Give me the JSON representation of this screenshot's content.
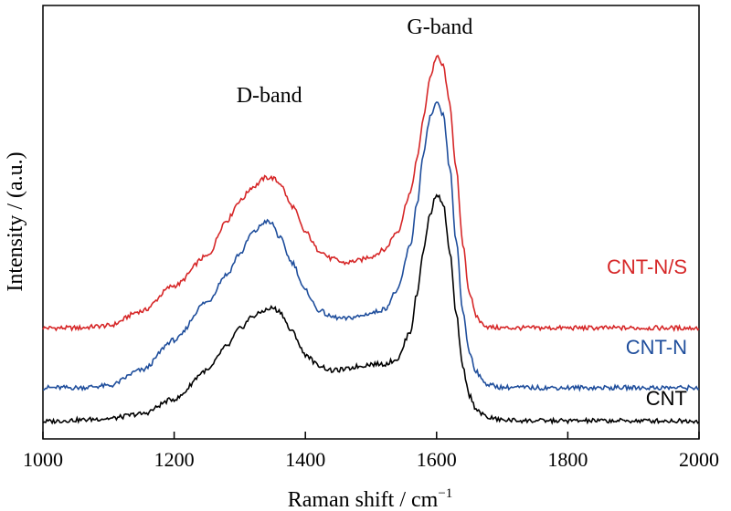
{
  "chart_data": {
    "type": "line",
    "title": "",
    "xlabel": "Raman shift / cm",
    "xlabel_superscript": "−1",
    "ylabel": "Intensity / (a.u.)",
    "xlim": [
      1000,
      2000
    ],
    "ylim": [
      0,
      1
    ],
    "x_ticks": [
      "1000",
      "1200",
      "1400",
      "1600",
      "1800",
      "2000"
    ],
    "y_ticks_shown": false,
    "grid": false,
    "legend": "inline labels at right",
    "annotations": [
      {
        "text": "D-band",
        "x": 1345
      },
      {
        "text": "G-band",
        "x": 1605
      }
    ],
    "series": [
      {
        "name": "CNT-N/S",
        "color": "#d62728",
        "x": [
          1000,
          1050,
          1100,
          1150,
          1200,
          1250,
          1280,
          1300,
          1320,
          1340,
          1350,
          1360,
          1380,
          1400,
          1420,
          1440,
          1460,
          1480,
          1500,
          1520,
          1540,
          1560,
          1570,
          1580,
          1590,
          1600,
          1610,
          1620,
          1630,
          1640,
          1650,
          1660,
          1670,
          1680,
          1700,
          1750,
          1800,
          1850,
          1900,
          1950,
          2000
        ],
        "values": [
          0.246,
          0.246,
          0.252,
          0.29,
          0.357,
          0.434,
          0.528,
          0.58,
          0.617,
          0.641,
          0.64,
          0.628,
          0.566,
          0.498,
          0.451,
          0.428,
          0.417,
          0.423,
          0.434,
          0.451,
          0.499,
          0.6,
          0.688,
          0.797,
          0.905,
          0.959,
          0.935,
          0.835,
          0.66,
          0.467,
          0.339,
          0.278,
          0.257,
          0.248,
          0.246,
          0.246,
          0.246,
          0.246,
          0.246,
          0.246,
          0.246
        ]
      },
      {
        "name": "CNT-N",
        "color": "#1f4e9c",
        "x": [
          1000,
          1050,
          1100,
          1150,
          1200,
          1250,
          1280,
          1300,
          1320,
          1340,
          1350,
          1360,
          1380,
          1400,
          1420,
          1440,
          1460,
          1480,
          1500,
          1520,
          1540,
          1560,
          1570,
          1580,
          1590,
          1600,
          1610,
          1620,
          1630,
          1640,
          1650,
          1660,
          1670,
          1680,
          1700,
          1750,
          1800,
          1850,
          1900,
          1950,
          2000
        ],
        "values": [
          0.089,
          0.089,
          0.094,
          0.135,
          0.214,
          0.314,
          0.386,
          0.441,
          0.497,
          0.526,
          0.519,
          0.485,
          0.418,
          0.344,
          0.293,
          0.275,
          0.27,
          0.276,
          0.285,
          0.295,
          0.344,
          0.461,
          0.572,
          0.702,
          0.8,
          0.836,
          0.805,
          0.667,
          0.471,
          0.29,
          0.182,
          0.134,
          0.108,
          0.096,
          0.09,
          0.089,
          0.089,
          0.089,
          0.089,
          0.089,
          0.089
        ]
      },
      {
        "name": "CNT",
        "color": "#000000",
        "x": [
          1000,
          1050,
          1100,
          1150,
          1200,
          1250,
          1280,
          1300,
          1320,
          1340,
          1350,
          1360,
          1380,
          1400,
          1420,
          1440,
          1460,
          1480,
          1500,
          1520,
          1540,
          1560,
          1570,
          1580,
          1590,
          1600,
          1610,
          1620,
          1630,
          1640,
          1650,
          1660,
          1670,
          1680,
          1700,
          1750,
          1800,
          1850,
          1900,
          1950,
          2000
        ],
        "values": [
          0.0,
          0.004,
          0.008,
          0.02,
          0.059,
          0.134,
          0.197,
          0.244,
          0.277,
          0.293,
          0.299,
          0.29,
          0.236,
          0.176,
          0.148,
          0.134,
          0.137,
          0.145,
          0.151,
          0.151,
          0.164,
          0.236,
          0.334,
          0.451,
          0.545,
          0.599,
          0.572,
          0.447,
          0.28,
          0.141,
          0.069,
          0.035,
          0.018,
          0.01,
          0.004,
          0.002,
          0.002,
          0.002,
          0.002,
          0.002,
          0.002
        ]
      }
    ]
  }
}
